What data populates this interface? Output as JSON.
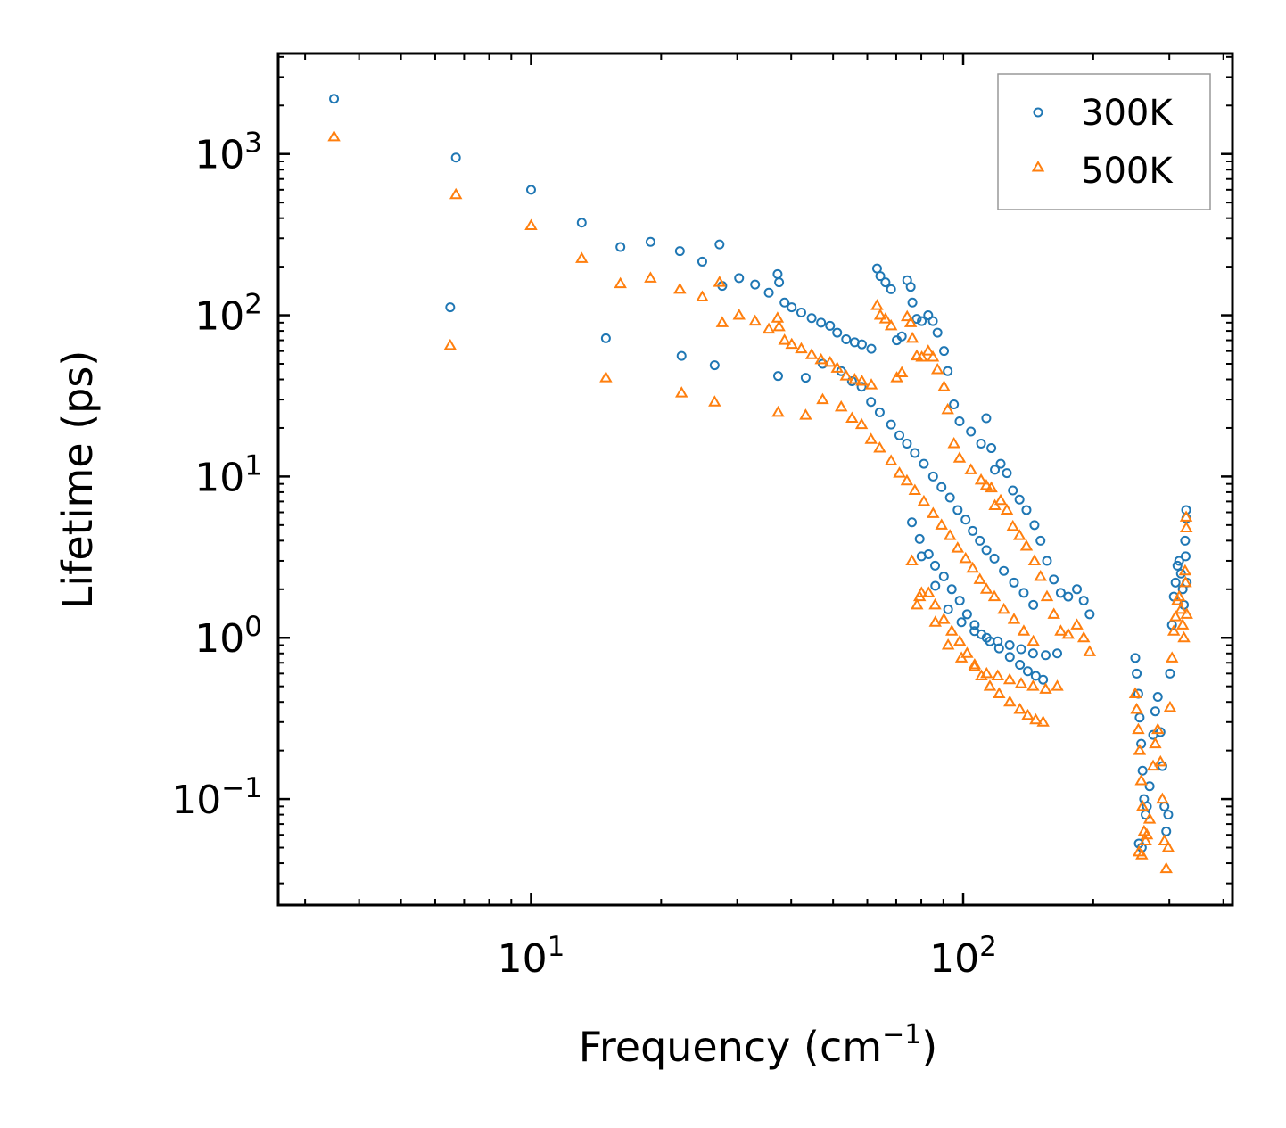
{
  "chart_data": {
    "type": "scatter",
    "title": "",
    "xlabel": "Frequency (cm",
    "xlabel_sup": "−1",
    "xlabel_end": ")",
    "ylabel": "Lifetime (ps)",
    "xscale": "log",
    "yscale": "log",
    "xlim": [
      2.6,
      420
    ],
    "ylim": [
      0.022,
      4200
    ],
    "x_ticks": [
      {
        "value": 10,
        "base": "10",
        "exp": "1"
      },
      {
        "value": 100,
        "base": "10",
        "exp": "2"
      }
    ],
    "y_ticks": [
      {
        "value": 0.1,
        "base": "10",
        "exp": "−1"
      },
      {
        "value": 1,
        "base": "10",
        "exp": "0"
      },
      {
        "value": 10,
        "base": "10",
        "exp": "1"
      },
      {
        "value": 100,
        "base": "10",
        "exp": "2"
      },
      {
        "value": 1000,
        "base": "10",
        "exp": "3"
      }
    ],
    "legend_position": "top-right",
    "series": [
      {
        "name": "300K",
        "marker": "circle",
        "color": "#1f77b4",
        "points": [
          [
            3.5,
            2200
          ],
          [
            6.5,
            112
          ],
          [
            6.7,
            950
          ],
          [
            10,
            600
          ],
          [
            13.1,
            375
          ],
          [
            14.9,
            72
          ],
          [
            16.1,
            265
          ],
          [
            18.9,
            285
          ],
          [
            22.1,
            250
          ],
          [
            22.3,
            56
          ],
          [
            24.9,
            215
          ],
          [
            26.6,
            49
          ],
          [
            27.3,
            275
          ],
          [
            27.7,
            152
          ],
          [
            30.3,
            170
          ],
          [
            33.0,
            155
          ],
          [
            35.5,
            138
          ],
          [
            37.2,
            180
          ],
          [
            37.5,
            160
          ],
          [
            37.3,
            42
          ],
          [
            38.6,
            120
          ],
          [
            40.1,
            112
          ],
          [
            42.2,
            104
          ],
          [
            44.6,
            96
          ],
          [
            46.9,
            90
          ],
          [
            49.2,
            86
          ],
          [
            51.1,
            78
          ],
          [
            53.6,
            71
          ],
          [
            56.1,
            68
          ],
          [
            58.3,
            66
          ],
          [
            61.3,
            62
          ],
          [
            63.2,
            195
          ],
          [
            64.3,
            175
          ],
          [
            66.1,
            160
          ],
          [
            68.1,
            145
          ],
          [
            70.2,
            70
          ],
          [
            72.1,
            74
          ],
          [
            74.2,
            165
          ],
          [
            75.6,
            150
          ],
          [
            76.3,
            120
          ],
          [
            78.1,
            95
          ],
          [
            80.2,
            92
          ],
          [
            83.0,
            100
          ],
          [
            85.1,
            92
          ],
          [
            87.2,
            78
          ],
          [
            90.3,
            60
          ],
          [
            92.1,
            45
          ],
          [
            95.2,
            28
          ],
          [
            98.1,
            22
          ],
          [
            104.2,
            19
          ],
          [
            110.0,
            16
          ],
          [
            113.1,
            23
          ],
          [
            116.2,
            15
          ],
          [
            118.4,
            11
          ],
          [
            122.1,
            12
          ],
          [
            126.2,
            10.5
          ],
          [
            130.3,
            8.2
          ],
          [
            135.0,
            7.2
          ],
          [
            140.1,
            6.2
          ],
          [
            146.2,
            5
          ],
          [
            151.0,
            4
          ],
          [
            156.3,
            3
          ],
          [
            162.1,
            2.3
          ],
          [
            168.2,
            1.9
          ],
          [
            175.0,
            1.8
          ],
          [
            183.3,
            2.0
          ],
          [
            190.1,
            1.7
          ],
          [
            196.2,
            1.4
          ],
          [
            43.2,
            41
          ],
          [
            47.3,
            50
          ],
          [
            52.2,
            45
          ],
          [
            55.3,
            39
          ],
          [
            58.2,
            36
          ],
          [
            61.2,
            29
          ],
          [
            64.1,
            25
          ],
          [
            68.1,
            21
          ],
          [
            71.2,
            18
          ],
          [
            74.1,
            16
          ],
          [
            77.3,
            14
          ],
          [
            81.1,
            12
          ],
          [
            85.2,
            10
          ],
          [
            89.1,
            8.6
          ],
          [
            93.2,
            7.4
          ],
          [
            97.1,
            6.2
          ],
          [
            101.3,
            5.4
          ],
          [
            105.2,
            4.6
          ],
          [
            109.3,
            4.0
          ],
          [
            113.2,
            3.5
          ],
          [
            118.1,
            3.1
          ],
          [
            124.2,
            2.6
          ],
          [
            131.1,
            2.2
          ],
          [
            138.1,
            1.9
          ],
          [
            145.3,
            1.6
          ],
          [
            76.1,
            5.2
          ],
          [
            79.3,
            4.1
          ],
          [
            83.2,
            3.3
          ],
          [
            86.1,
            2.8
          ],
          [
            90.2,
            2.4
          ],
          [
            94.1,
            2.0
          ],
          [
            98.2,
            1.7
          ],
          [
            102.1,
            1.4
          ],
          [
            106.3,
            1.2
          ],
          [
            110.2,
            1.05
          ],
          [
            115.3,
            0.95
          ],
          [
            121.1,
            0.86
          ],
          [
            128.2,
            0.76
          ],
          [
            135.3,
            0.68
          ],
          [
            141.1,
            0.62
          ],
          [
            147.2,
            0.58
          ],
          [
            153.1,
            0.55
          ],
          [
            80.1,
            3.2
          ],
          [
            86.2,
            2.1
          ],
          [
            92.3,
            1.5
          ],
          [
            99.1,
            1.25
          ],
          [
            106.2,
            1.1
          ],
          [
            113.3,
            1.0
          ],
          [
            120.2,
            0.95
          ],
          [
            128.1,
            0.9
          ],
          [
            136.2,
            0.85
          ],
          [
            145.1,
            0.8
          ],
          [
            155.2,
            0.78
          ],
          [
            165.1,
            0.8
          ],
          [
            250.2,
            0.75
          ],
          [
            252.1,
            0.6
          ],
          [
            254.3,
            0.45
          ],
          [
            256.1,
            0.32
          ],
          [
            258.2,
            0.22
          ],
          [
            260.1,
            0.15
          ],
          [
            262.2,
            0.1
          ],
          [
            255.1,
            0.053
          ],
          [
            259.1,
            0.05
          ],
          [
            264.3,
            0.08
          ],
          [
            266.2,
            0.09
          ],
          [
            270.1,
            0.12
          ],
          [
            275.2,
            0.25
          ],
          [
            278.3,
            0.35
          ],
          [
            282.1,
            0.43
          ],
          [
            286.2,
            0.26
          ],
          [
            289.1,
            0.16
          ],
          [
            292.3,
            0.09
          ],
          [
            295.1,
            0.063
          ],
          [
            298.2,
            0.08
          ],
          [
            301.1,
            0.6
          ],
          [
            304.3,
            1.2
          ],
          [
            307.2,
            1.8
          ],
          [
            310.1,
            2.2
          ],
          [
            313.2,
            2.8
          ],
          [
            316.1,
            3.0
          ],
          [
            319.2,
            2.5
          ],
          [
            322.1,
            2.0
          ],
          [
            324.2,
            1.6
          ],
          [
            326.3,
            4.0
          ],
          [
            328.1,
            6.2
          ],
          [
            328.4,
            5.5
          ],
          [
            327.2,
            3.2
          ],
          [
            329.1,
            2.2
          ]
        ]
      },
      {
        "name": "500K",
        "marker": "triangle",
        "color": "#ff7f0e",
        "points": [
          [
            3.5,
            1280
          ],
          [
            6.5,
            65
          ],
          [
            6.7,
            560
          ],
          [
            10,
            360
          ],
          [
            13.1,
            225
          ],
          [
            14.9,
            41
          ],
          [
            16.1,
            157
          ],
          [
            18.9,
            170
          ],
          [
            22.1,
            145
          ],
          [
            22.3,
            33
          ],
          [
            24.9,
            130
          ],
          [
            26.6,
            29
          ],
          [
            27.3,
            160
          ],
          [
            27.7,
            90
          ],
          [
            30.3,
            100
          ],
          [
            33.0,
            92
          ],
          [
            35.5,
            82
          ],
          [
            37.2,
            96
          ],
          [
            37.5,
            85
          ],
          [
            37.3,
            25
          ],
          [
            38.6,
            70
          ],
          [
            40.1,
            66
          ],
          [
            42.2,
            62
          ],
          [
            44.6,
            57
          ],
          [
            46.9,
            53
          ],
          [
            49.2,
            51
          ],
          [
            51.1,
            47
          ],
          [
            53.6,
            42
          ],
          [
            56.1,
            40
          ],
          [
            58.3,
            39
          ],
          [
            61.3,
            37
          ],
          [
            63.2,
            115
          ],
          [
            64.3,
            100
          ],
          [
            66.1,
            95
          ],
          [
            68.1,
            86
          ],
          [
            70.2,
            41
          ],
          [
            72.1,
            44
          ],
          [
            74.2,
            98
          ],
          [
            75.6,
            90
          ],
          [
            76.3,
            72
          ],
          [
            78.1,
            56
          ],
          [
            80.2,
            55
          ],
          [
            83.0,
            60
          ],
          [
            85.1,
            55
          ],
          [
            87.2,
            46
          ],
          [
            90.3,
            36
          ],
          [
            92.1,
            26
          ],
          [
            95.2,
            16
          ],
          [
            98.1,
            13
          ],
          [
            104.2,
            11
          ],
          [
            110.0,
            9.5
          ],
          [
            113.1,
            8.8
          ],
          [
            116.2,
            8.5
          ],
          [
            118.4,
            6.6
          ],
          [
            122.1,
            7.1
          ],
          [
            126.2,
            6.2
          ],
          [
            130.3,
            4.9
          ],
          [
            135.0,
            4.3
          ],
          [
            140.1,
            3.7
          ],
          [
            146.2,
            3.0
          ],
          [
            151.0,
            2.4
          ],
          [
            156.3,
            1.8
          ],
          [
            162.1,
            1.4
          ],
          [
            168.2,
            1.1
          ],
          [
            175.0,
            1.05
          ],
          [
            183.3,
            1.2
          ],
          [
            190.1,
            1.0
          ],
          [
            196.2,
            0.82
          ],
          [
            43.2,
            24
          ],
          [
            47.3,
            30
          ],
          [
            52.2,
            27
          ],
          [
            55.3,
            23
          ],
          [
            58.2,
            21
          ],
          [
            61.2,
            17
          ],
          [
            64.1,
            15
          ],
          [
            68.1,
            12.5
          ],
          [
            71.2,
            10.5
          ],
          [
            74.1,
            9.4
          ],
          [
            77.3,
            8.2
          ],
          [
            81.1,
            7.0
          ],
          [
            85.2,
            5.9
          ],
          [
            89.1,
            5.0
          ],
          [
            93.2,
            4.3
          ],
          [
            97.1,
            3.6
          ],
          [
            101.3,
            3.1
          ],
          [
            105.2,
            2.7
          ],
          [
            109.3,
            2.3
          ],
          [
            113.2,
            2.0
          ],
          [
            118.1,
            1.8
          ],
          [
            124.2,
            1.5
          ],
          [
            131.1,
            1.3
          ],
          [
            138.1,
            1.1
          ],
          [
            145.3,
            0.95
          ],
          [
            76.1,
            3.0
          ],
          [
            78.2,
            1.6
          ],
          [
            79.3,
            1.8
          ],
          [
            83.2,
            1.9
          ],
          [
            86.1,
            1.6
          ],
          [
            90.2,
            1.3
          ],
          [
            94.1,
            1.1
          ],
          [
            98.2,
            0.95
          ],
          [
            102.1,
            0.8
          ],
          [
            106.3,
            0.68
          ],
          [
            110.2,
            0.58
          ],
          [
            115.3,
            0.5
          ],
          [
            121.1,
            0.45
          ],
          [
            128.2,
            0.4
          ],
          [
            135.3,
            0.36
          ],
          [
            141.1,
            0.33
          ],
          [
            147.2,
            0.31
          ],
          [
            153.1,
            0.3
          ],
          [
            80.1,
            1.9
          ],
          [
            86.2,
            1.25
          ],
          [
            92.3,
            0.9
          ],
          [
            99.1,
            0.75
          ],
          [
            106.2,
            0.66
          ],
          [
            113.3,
            0.6
          ],
          [
            120.2,
            0.58
          ],
          [
            128.1,
            0.55
          ],
          [
            136.2,
            0.52
          ],
          [
            145.1,
            0.5
          ],
          [
            155.2,
            0.48
          ],
          [
            165.1,
            0.5
          ],
          [
            250.2,
            0.45
          ],
          [
            252.1,
            0.36
          ],
          [
            254.3,
            0.27
          ],
          [
            256.1,
            0.2
          ],
          [
            258.2,
            0.13
          ],
          [
            260.1,
            0.09
          ],
          [
            262.2,
            0.063
          ],
          [
            255.1,
            0.047
          ],
          [
            259.1,
            0.045
          ],
          [
            264.3,
            0.055
          ],
          [
            266.2,
            0.06
          ],
          [
            270.1,
            0.075
          ],
          [
            275.2,
            0.16
          ],
          [
            278.3,
            0.22
          ],
          [
            282.1,
            0.27
          ],
          [
            286.2,
            0.17
          ],
          [
            289.1,
            0.1
          ],
          [
            292.3,
            0.055
          ],
          [
            295.1,
            0.037
          ],
          [
            298.2,
            0.05
          ],
          [
            301.1,
            0.37
          ],
          [
            304.3,
            0.75
          ],
          [
            307.2,
            1.1
          ],
          [
            310.1,
            1.35
          ],
          [
            313.2,
            1.7
          ],
          [
            316.1,
            1.8
          ],
          [
            319.2,
            1.5
          ],
          [
            322.1,
            1.2
          ],
          [
            324.2,
            1.0
          ],
          [
            326.3,
            2.6
          ],
          [
            328.1,
            5.6
          ],
          [
            328.4,
            4.8
          ],
          [
            327.2,
            2.2
          ],
          [
            329.1,
            1.4
          ]
        ]
      }
    ]
  }
}
